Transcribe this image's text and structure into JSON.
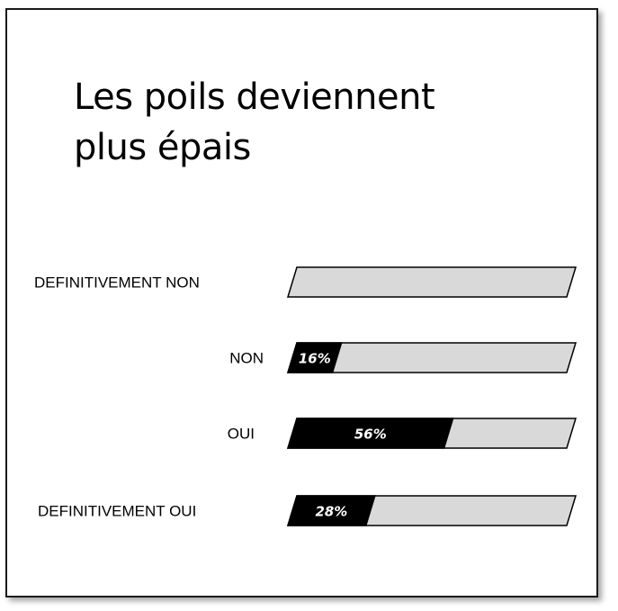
{
  "chart_data": {
    "type": "bar",
    "orientation": "horizontal",
    "title_lines": [
      "Les poils deviennent",
      "plus épais"
    ],
    "categories": [
      "DEFINITIVEMENT NON",
      "NON",
      "OUI",
      "DEFINITIVEMENT OUI"
    ],
    "values": [
      0,
      16,
      56,
      28
    ],
    "value_labels": [
      "",
      "16%",
      "56%",
      "28%"
    ],
    "xlim": [
      0,
      100
    ],
    "grid": false,
    "legend": "none",
    "colors": {
      "fill": "#000000",
      "track": "#d9d9d9",
      "outline": "#000000",
      "value_text": "#ffffff"
    }
  }
}
